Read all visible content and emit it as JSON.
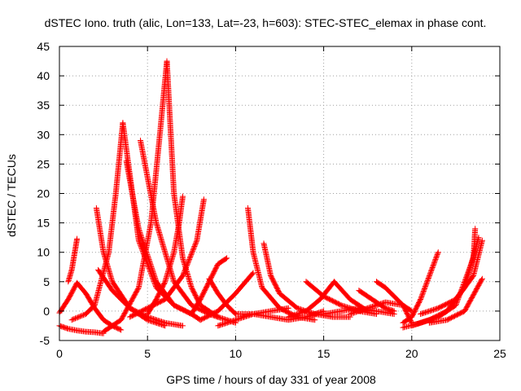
{
  "chart_data": {
    "type": "scatter",
    "title": "dSTEC Iono. truth (alic, Lon=133, Lat=-23, h=603): STEC-STEC_elemax in phase cont.",
    "xlabel": "GPS time / hours of day 331 of year 2008",
    "ylabel": "dSTEC  / TECUs",
    "xlim": [
      0,
      25
    ],
    "ylim": [
      -5,
      45
    ],
    "xticks": [
      0,
      5,
      10,
      15,
      20,
      25
    ],
    "yticks": [
      -5,
      0,
      5,
      10,
      15,
      20,
      25,
      30,
      35,
      40,
      45
    ],
    "grid": true,
    "marker": "+",
    "color": "#ff0000",
    "series": [
      {
        "x": [
          0.0,
          0.5,
          1.0,
          1.5,
          2.0,
          2.5,
          3.0,
          3.5
        ],
        "y": [
          -0.3,
          2.0,
          4.8,
          3.0,
          0.5,
          -1.5,
          -2.5,
          -3.2
        ]
      },
      {
        "x": [
          0.5,
          0.7,
          0.9,
          1.0
        ],
        "y": [
          5.0,
          7.0,
          10.5,
          12.3
        ]
      },
      {
        "x": [
          0.0,
          0.5,
          1.0,
          1.5,
          2.0,
          2.5
        ],
        "y": [
          -2.5,
          -3.0,
          -3.3,
          -3.5,
          -3.6,
          -3.8
        ]
      },
      {
        "x": [
          0.7,
          1.5,
          2.0,
          2.8,
          3.2,
          3.6
        ],
        "y": [
          -1.5,
          -0.5,
          1.0,
          10.0,
          20.0,
          32.0
        ]
      },
      {
        "x": [
          3.6,
          4.5,
          5.5,
          6.5,
          7.5
        ],
        "y": [
          32.0,
          12.0,
          4.0,
          1.0,
          -0.5
        ]
      },
      {
        "x": [
          2.1,
          2.5,
          3.0,
          4.0,
          5.0,
          6.0
        ],
        "y": [
          17.5,
          10.0,
          5.0,
          0.5,
          -1.5,
          -2.5
        ]
      },
      {
        "x": [
          2.2,
          3.0,
          4.0,
          5.0,
          6.0,
          7.0
        ],
        "y": [
          7.0,
          3.5,
          0.5,
          -1.0,
          -2.0,
          -2.5
        ]
      },
      {
        "x": [
          3.8,
          4.5,
          5.5,
          6.5,
          7.5,
          8.0
        ],
        "y": [
          25.5,
          14.0,
          5.0,
          1.0,
          -0.5,
          -1.5
        ]
      },
      {
        "x": [
          4.6,
          5.5,
          6.5,
          7.5,
          8.5,
          9.0
        ],
        "y": [
          29.0,
          15.0,
          5.0,
          1.0,
          -0.5,
          -1.0
        ]
      },
      {
        "x": [
          2.5,
          3.5,
          4.5,
          5.2,
          5.7,
          6.1
        ],
        "y": [
          -3.5,
          -1.5,
          4.0,
          15.0,
          30.0,
          42.5
        ]
      },
      {
        "x": [
          6.1,
          6.5,
          7.0,
          7.5,
          8.0,
          9.0,
          10.0
        ],
        "y": [
          42.5,
          20.0,
          9.0,
          4.0,
          1.0,
          -1.0,
          -2.0
        ]
      },
      {
        "x": [
          5.0,
          5.5,
          6.0,
          6.5,
          6.8,
          7.0
        ],
        "y": [
          -0.5,
          2.0,
          5.0,
          10.0,
          15.0,
          19.5
        ]
      },
      {
        "x": [
          4.0,
          5.0,
          6.0,
          7.0,
          7.8,
          8.2
        ],
        "y": [
          -1.0,
          0.5,
          2.0,
          6.0,
          12.0,
          19.0
        ]
      },
      {
        "x": [
          7.5,
          8.0,
          8.5,
          9.0,
          9.5
        ],
        "y": [
          -0.5,
          2.0,
          5.0,
          8.0,
          9.0
        ]
      },
      {
        "x": [
          8.5,
          9.0,
          9.5,
          10.0
        ],
        "y": [
          5.5,
          3.0,
          1.0,
          -0.5
        ]
      },
      {
        "x": [
          8.0,
          9.0,
          10.0,
          11.0
        ],
        "y": [
          -1.5,
          0.0,
          3.0,
          6.5
        ]
      },
      {
        "x": [
          10.7,
          11.0,
          11.5,
          12.5,
          13.5,
          14.5
        ],
        "y": [
          17.5,
          10.0,
          4.0,
          0.5,
          -1.0,
          -1.5
        ]
      },
      {
        "x": [
          11.6,
          12.0,
          12.5,
          13.5,
          14.5,
          15.5,
          16.5
        ],
        "y": [
          11.5,
          6.0,
          3.0,
          0.5,
          -0.5,
          -1.0,
          -1.0
        ]
      },
      {
        "x": [
          10.0,
          11.0,
          12.0,
          13.0,
          14.0,
          15.0
        ],
        "y": [
          -0.5,
          -0.5,
          -1.0,
          -1.5,
          -1.0,
          0.0
        ]
      },
      {
        "x": [
          9.0,
          10.0,
          11.0,
          12.0,
          13.0
        ],
        "y": [
          -2.5,
          -1.5,
          -0.5,
          0.0,
          0.5
        ]
      },
      {
        "x": [
          14.0,
          15.0,
          16.0,
          17.0,
          18.0
        ],
        "y": [
          5.0,
          2.5,
          1.0,
          0.0,
          -0.5
        ]
      },
      {
        "x": [
          13.0,
          14.0,
          14.8,
          15.6,
          16.5,
          17.5
        ],
        "y": [
          -1.0,
          0.0,
          2.0,
          5.0,
          2.0,
          0.0
        ]
      },
      {
        "x": [
          15.0,
          16.0,
          17.0,
          18.0,
          19.0
        ],
        "y": [
          -0.5,
          0.0,
          0.5,
          0.0,
          -0.5
        ]
      },
      {
        "x": [
          17.0,
          17.5,
          18.0,
          18.5,
          19.0
        ],
        "y": [
          3.5,
          2.5,
          1.5,
          0.5,
          0.0
        ]
      },
      {
        "x": [
          18.0,
          18.5,
          19.0,
          19.5,
          20.0
        ],
        "y": [
          5.0,
          4.0,
          2.5,
          1.0,
          0.0
        ]
      },
      {
        "x": [
          16.5,
          17.5,
          18.5,
          19.5,
          20.0
        ],
        "y": [
          -0.5,
          0.5,
          1.5,
          1.0,
          -2.0
        ]
      },
      {
        "x": [
          19.5,
          20.0,
          20.5,
          21.0,
          21.5
        ],
        "y": [
          -2.0,
          -1.0,
          2.0,
          6.0,
          10.0
        ]
      },
      {
        "x": [
          19.5,
          20.5,
          21.5,
          22.5,
          23.5,
          23.6
        ],
        "y": [
          -2.8,
          -2.0,
          -1.0,
          1.0,
          9.0,
          14.0
        ]
      },
      {
        "x": [
          20.0,
          21.0,
          22.0,
          23.0,
          23.8
        ],
        "y": [
          -2.5,
          -1.5,
          0.0,
          4.0,
          12.5
        ]
      },
      {
        "x": [
          21.0,
          22.0,
          23.0,
          24.0
        ],
        "y": [
          -2.0,
          -1.5,
          0.0,
          5.5
        ]
      },
      {
        "x": [
          20.5,
          21.5,
          22.5,
          23.5,
          24.0
        ],
        "y": [
          -0.5,
          0.5,
          2.0,
          6.0,
          12.0
        ]
      }
    ]
  }
}
